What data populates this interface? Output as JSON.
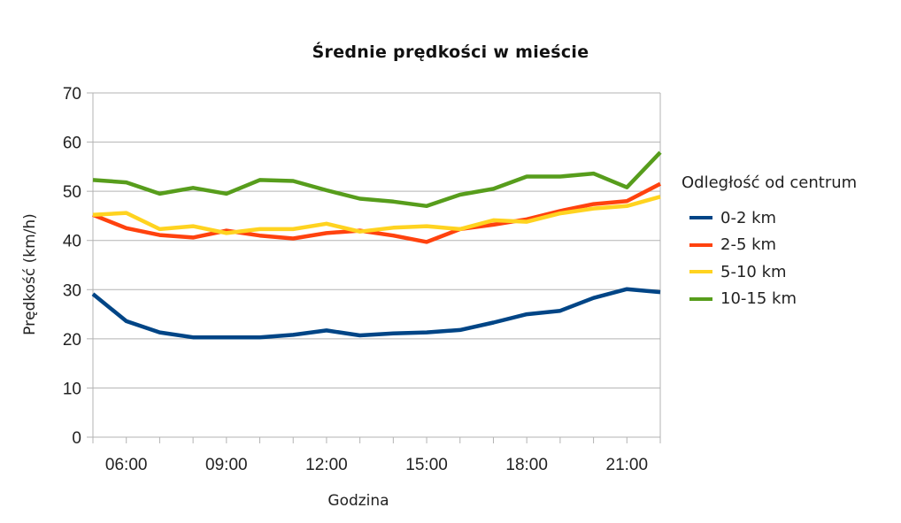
{
  "title": "Średnie prędkości w mieście",
  "xlabel": "Godzina",
  "ylabel": "Prędkość (km/h)",
  "legend": {
    "title": "Odległość od centrum",
    "items": [
      {
        "label": "0-2 km",
        "color": "#004586"
      },
      {
        "label": "2-5 km",
        "color": "#ff420e"
      },
      {
        "label": "5-10 km",
        "color": "#ffd320"
      },
      {
        "label": "10-15 km",
        "color": "#579d1c"
      }
    ]
  },
  "y_ticks": [
    "0",
    "10",
    "20",
    "30",
    "40",
    "50",
    "60",
    "70"
  ],
  "x_ticks": [
    "06:00",
    "09:00",
    "12:00",
    "15:00",
    "18:00",
    "21:00"
  ],
  "chart_data": {
    "type": "line",
    "title": "Średnie prędkości w mieście",
    "xlabel": "Godzina",
    "ylabel": "Prędkość (km/h)",
    "ylim": [
      0,
      70
    ],
    "y_tick_step": 10,
    "grid": "horizontal",
    "legend_position": "right",
    "legend_title": "Odległość od centrum",
    "x": [
      "05:00",
      "06:00",
      "07:00",
      "08:00",
      "09:00",
      "10:00",
      "11:00",
      "12:00",
      "13:00",
      "14:00",
      "15:00",
      "16:00",
      "17:00",
      "18:00",
      "19:00",
      "20:00",
      "21:00",
      "22:00"
    ],
    "x_tick_labels": [
      "06:00",
      "09:00",
      "12:00",
      "15:00",
      "18:00",
      "21:00"
    ],
    "series": [
      {
        "name": "0-2 km",
        "color": "#004586",
        "values": [
          29.1,
          23.6,
          21.3,
          20.3,
          20.3,
          20.3,
          20.8,
          21.7,
          20.7,
          21.1,
          21.3,
          21.8,
          23.3,
          25.0,
          25.7,
          28.3,
          30.1,
          29.5
        ]
      },
      {
        "name": "2-5 km",
        "color": "#ff420e",
        "values": [
          45.2,
          42.5,
          41.1,
          40.6,
          42.0,
          41.0,
          40.4,
          41.5,
          42.0,
          41.0,
          39.7,
          42.3,
          43.2,
          44.3,
          46.0,
          47.4,
          48.0,
          51.5
        ]
      },
      {
        "name": "5-10 km",
        "color": "#ffd320",
        "values": [
          45.2,
          45.6,
          42.3,
          42.9,
          41.5,
          42.3,
          42.3,
          43.4,
          41.8,
          42.6,
          42.9,
          42.3,
          44.1,
          43.8,
          45.5,
          46.5,
          47.0,
          48.9
        ]
      },
      {
        "name": "10-15 km",
        "color": "#579d1c",
        "values": [
          52.3,
          51.8,
          49.5,
          50.7,
          49.5,
          52.3,
          52.1,
          50.2,
          48.5,
          47.9,
          47.0,
          49.3,
          50.5,
          53.0,
          53.0,
          53.6,
          50.8,
          57.9
        ]
      }
    ]
  }
}
